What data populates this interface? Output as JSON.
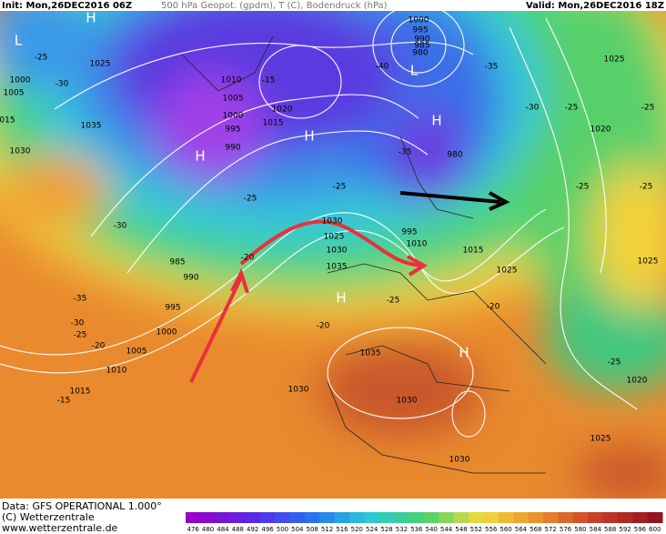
{
  "header": {
    "init": "Init: Mon,26DEC2016 06Z",
    "fields": "500 hPa Geopot. (gpdm), T (C), Bodendruck (hPa)",
    "valid": "Valid: Mon,26DEC2016 18Z"
  },
  "map": {
    "labels": [
      "L",
      "H",
      "1025",
      "1000",
      "1005",
      "-30",
      "-25",
      "015",
      "1030",
      "1035",
      "1010",
      "-15",
      "1005",
      "1000",
      "1020",
      "1015",
      "995",
      "990",
      "H",
      "H",
      "1000",
      "995",
      "990",
      "985",
      "980",
      "L",
      "-40",
      "H",
      "-35",
      "980",
      "-35",
      "-30",
      "-25",
      "-25",
      "1025",
      "1020",
      "-25",
      "-25",
      "1025",
      "-25",
      "-25",
      "-30",
      "985",
      "990",
      "995",
      "1000",
      "1005",
      "1010",
      "1015",
      "-15",
      "-20",
      "-25",
      "-30",
      "-35",
      "-20",
      "1030",
      "1025",
      "1030",
      "1035",
      "H",
      "-25",
      "-20",
      "995",
      "1010",
      "1015",
      "1025",
      "-20",
      "H",
      "1035",
      "1030",
      "1030",
      "1030",
      "1025",
      "1020",
      "-25"
    ]
  },
  "footer": {
    "data": "Data: GFS OPERATIONAL 1.000°",
    "copyright": "(C) Wetterzentrale",
    "url": "www.wetterzentrale.de"
  },
  "colorbar": {
    "labels": [
      476,
      480,
      484,
      488,
      492,
      496,
      500,
      504,
      508,
      512,
      516,
      520,
      524,
      528,
      532,
      536,
      540,
      544,
      548,
      552,
      556,
      560,
      564,
      568,
      572,
      576,
      580,
      584,
      588,
      592,
      596,
      600
    ]
  }
}
